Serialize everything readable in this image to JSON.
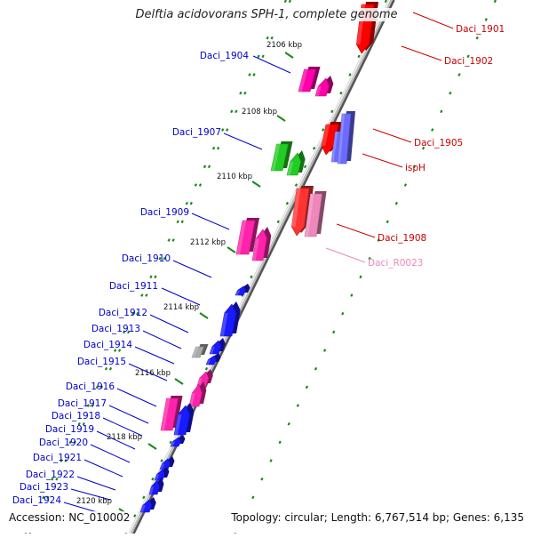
{
  "title": "Delftia acidovorans SPH-1, complete genome",
  "accession_label": "Accession: NC_010002",
  "topology_label": "Topology: circular; Length: 6,767,514 bp; Genes: 6,135",
  "colors": {
    "backbone": "#8c8c8c",
    "ticks": "#1a8a1a",
    "forward_label": "#0000cc",
    "reverse_label": "#cc0000",
    "rna_label": "#ee88bb"
  },
  "ticks": [
    {
      "label": "2106 kbp"
    },
    {
      "label": "2108 kbp"
    },
    {
      "label": "2110 kbp"
    },
    {
      "label": "2112 kbp"
    },
    {
      "label": "2114 kbp"
    },
    {
      "label": "2116 kbp"
    },
    {
      "label": "2118 kbp"
    },
    {
      "label": "2120 kbp"
    }
  ],
  "genes": [
    {
      "name": "Daci_1901",
      "strand": "reverse",
      "color": "#ff0000"
    },
    {
      "name": "Daci_1902",
      "strand": "reverse",
      "color": "#ff0000"
    },
    {
      "name": "Daci_1904",
      "strand": "forward",
      "color": "#ff00aa"
    },
    {
      "name": "Daci_1905",
      "strand": "reverse",
      "color": "#ff0000"
    },
    {
      "name": "ispH",
      "strand": "reverse",
      "color": "#6b6bff"
    },
    {
      "name": "Daci_1907",
      "strand": "forward",
      "color": "#22cc22"
    },
    {
      "name": "Daci_1908",
      "strand": "reverse",
      "color": "#ff3333"
    },
    {
      "name": "Daci_R0023",
      "strand": "reverse",
      "color": "#ee88bb"
    },
    {
      "name": "Daci_1909",
      "strand": "forward",
      "color": "#ff22aa"
    },
    {
      "name": "Daci_1910",
      "strand": "forward",
      "color": "#1a1aff"
    },
    {
      "name": "Daci_1911",
      "strand": "forward",
      "color": "#1a1aff"
    },
    {
      "name": "Daci_1912",
      "strand": "forward",
      "color": "#1a1aff"
    },
    {
      "name": "Daci_1913",
      "strand": "forward",
      "color": "#aaaaaa"
    },
    {
      "name": "Daci_1914",
      "strand": "forward",
      "color": "#1a1aff"
    },
    {
      "name": "Daci_1915",
      "strand": "forward",
      "color": "#1a1aff"
    },
    {
      "name": "Daci_1916",
      "strand": "forward",
      "color": "#ff22aa"
    },
    {
      "name": "Daci_1917",
      "strand": "forward",
      "color": "#1a1aff"
    },
    {
      "name": "Daci_1918",
      "strand": "forward",
      "color": "#1a1aff"
    },
    {
      "name": "Daci_1919",
      "strand": "forward",
      "color": "#1a1aff"
    },
    {
      "name": "Daci_1920",
      "strand": "forward",
      "color": "#1a1aff"
    },
    {
      "name": "Daci_1921",
      "strand": "forward",
      "color": "#1a1aff"
    },
    {
      "name": "Daci_1922",
      "strand": "forward",
      "color": "#1a1aff"
    },
    {
      "name": "Daci_1923",
      "strand": "forward",
      "color": "#1a1aff"
    },
    {
      "name": "Daci_1924",
      "strand": "forward",
      "color": "#1a1aff"
    }
  ]
}
